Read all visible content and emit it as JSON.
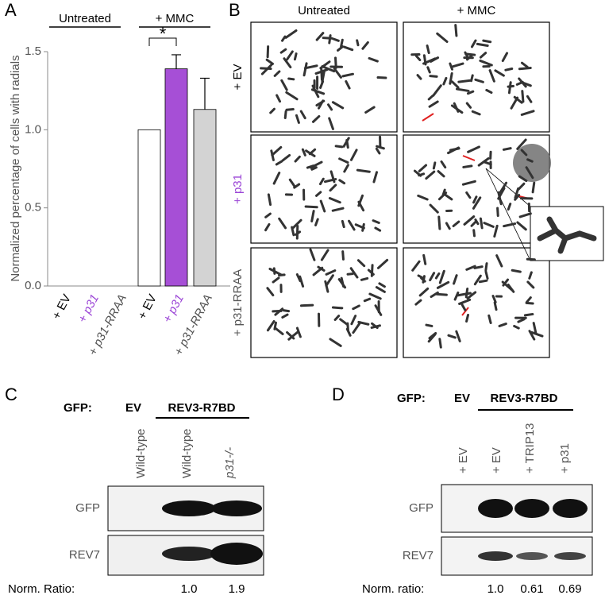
{
  "chart_data": {
    "type": "bar",
    "ylabel": "Normalized percentage of cells with radials",
    "categories": [
      "+ EV",
      "+ p31",
      "+ p31-RRAA",
      "+ EV",
      "+ p31",
      "+ p31-RRAA"
    ],
    "category_colors": [
      "#000000",
      "#9b45d6",
      "#555555",
      "#000000",
      "#9b45d6",
      "#555555"
    ],
    "values": [
      null,
      null,
      null,
      1.0,
      1.39,
      1.13
    ],
    "errors": [
      null,
      null,
      null,
      null,
      0.09,
      0.2
    ],
    "colors": [
      "#ffffff",
      "#a64fd6",
      "#d3d3d3",
      "#ffffff",
      "#a64fd6",
      "#d3d3d3"
    ],
    "groups": [
      "Untreated",
      "+ MMC"
    ],
    "significance": "*",
    "ylim": [
      0,
      1.5
    ],
    "yticks": [
      {
        "value": 0,
        "label": "0.0"
      },
      {
        "value": 0.5,
        "label": "0.5"
      },
      {
        "value": 1,
        "label": "1.0"
      },
      {
        "value": 1.5,
        "label": "1.5"
      }
    ]
  },
  "panels": {
    "a": "A",
    "b": "B",
    "c": "C",
    "d": "D"
  },
  "panel_b": {
    "columns": [
      "Untreated",
      "+ MMC"
    ],
    "rows": [
      "+ EV",
      "+ p31",
      "+ p31-RRAA"
    ]
  },
  "panel_c": {
    "gfp_label": "GFP:",
    "ev": "EV",
    "construct": "REV3-R7BD",
    "lanes": [
      "Wild-type",
      "Wild-type",
      "p31-/-"
    ],
    "blots": [
      "GFP",
      "REV7"
    ],
    "ratio_label": "Norm. Ratio:",
    "ratios": [
      "1.0",
      "1.9"
    ]
  },
  "panel_d": {
    "gfp_label": "GFP:",
    "ev": "EV",
    "construct": "REV3-R7BD",
    "lanes": [
      "+ EV",
      "+ EV",
      "+ TRIP13",
      "+ p31"
    ],
    "blots": [
      "GFP",
      "REV7"
    ],
    "ratio_label": "Norm. ratio:",
    "ratios": [
      "1.0",
      "0.61",
      "0.69"
    ]
  }
}
